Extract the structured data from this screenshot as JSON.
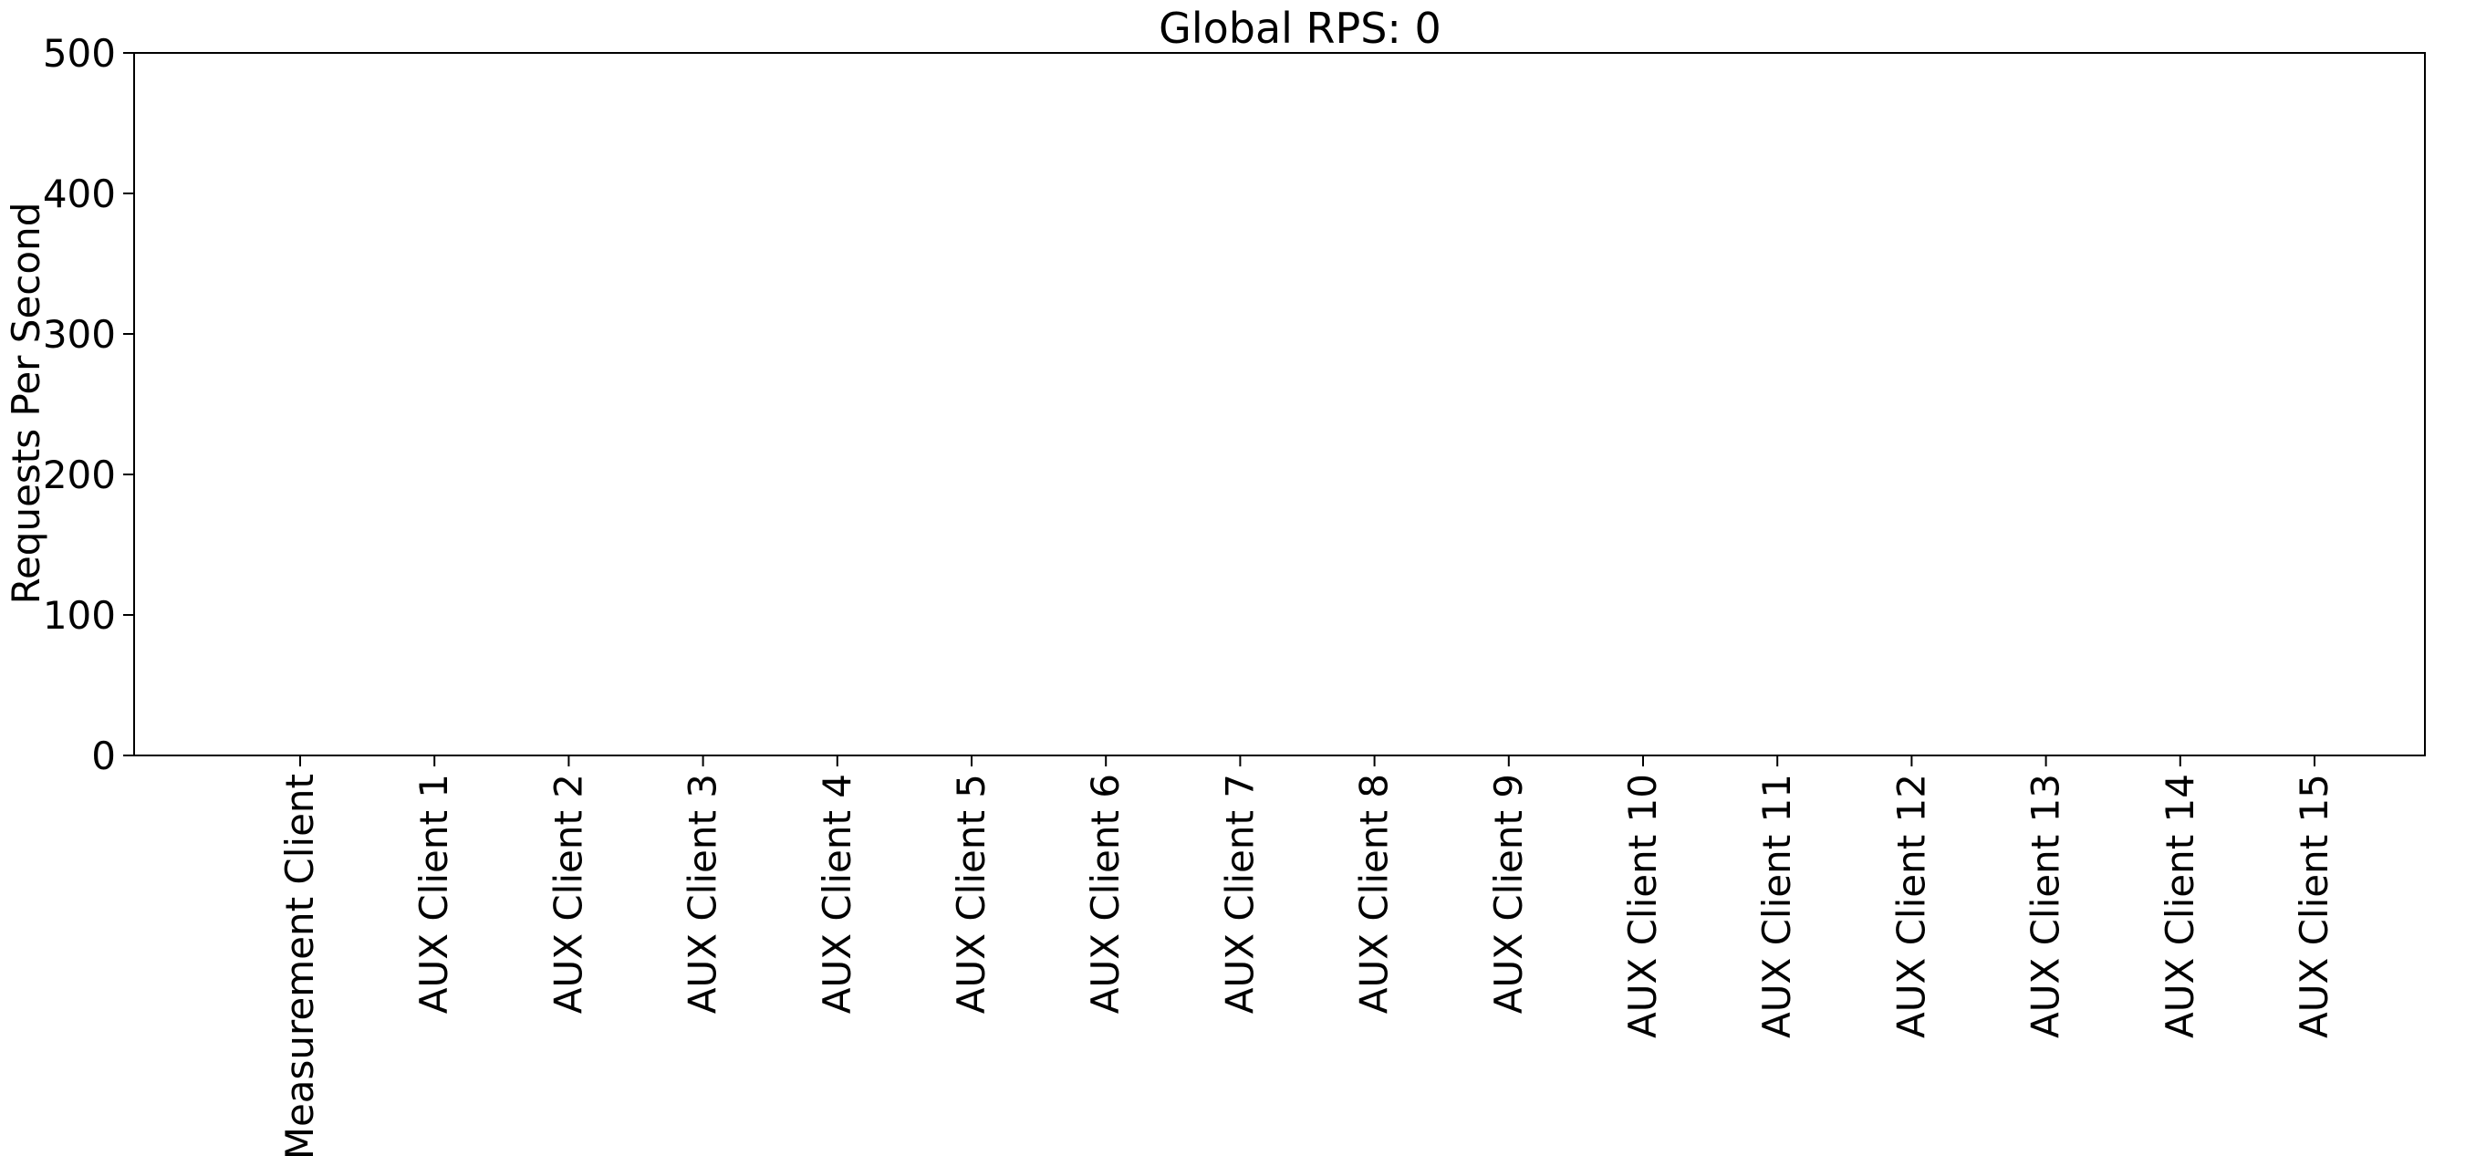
{
  "chart_data": {
    "type": "bar",
    "title": "Global RPS: 0",
    "xlabel": "",
    "ylabel": "Requests Per Second",
    "categories": [
      "Measurement Client",
      "AUX Client 1",
      "AUX Client 2",
      "AUX Client 3",
      "AUX Client 4",
      "AUX Client 5",
      "AUX Client 6",
      "AUX Client 7",
      "AUX Client 8",
      "AUX Client 9",
      "AUX Client 10",
      "AUX Client 11",
      "AUX Client 12",
      "AUX Client 13",
      "AUX Client 14",
      "AUX Client 15"
    ],
    "values": [
      0,
      0,
      0,
      0,
      0,
      0,
      0,
      0,
      0,
      0,
      0,
      0,
      0,
      0,
      0,
      0
    ],
    "ylim": [
      0,
      500
    ],
    "yticks": [
      "0",
      "100",
      "200",
      "300",
      "400",
      "500"
    ],
    "grid": false,
    "legend": "none",
    "colors": {
      "bar": "#1f77b4",
      "axis": "#000000",
      "background": "#ffffff"
    }
  }
}
